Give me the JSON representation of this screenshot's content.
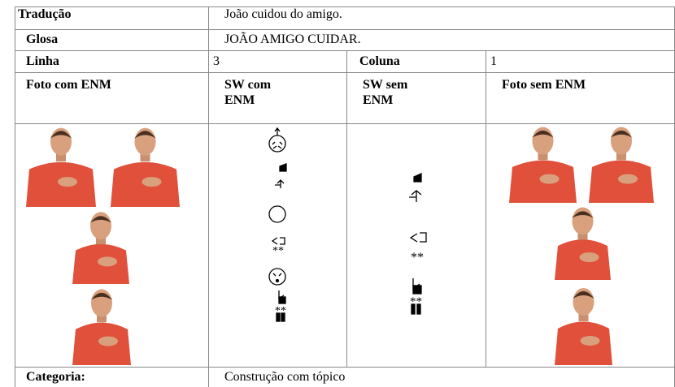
{
  "table": {
    "traducao": {
      "label": "Tradução",
      "text": "João cuidou do amigo."
    },
    "glosa": {
      "label": "Glosa",
      "text": "JOÃO AMIGO CUIDAR."
    },
    "linha": {
      "label": "Linha",
      "value": 3
    },
    "coluna": {
      "label": "Coluna",
      "value": 1
    },
    "headers": [
      "Foto com ENM",
      "SW com ENM",
      "SW sem ENM",
      "Foto sem ENM"
    ],
    "categoria": {
      "label": "Categoria:",
      "text": "Construção com tópico"
    }
  }
}
